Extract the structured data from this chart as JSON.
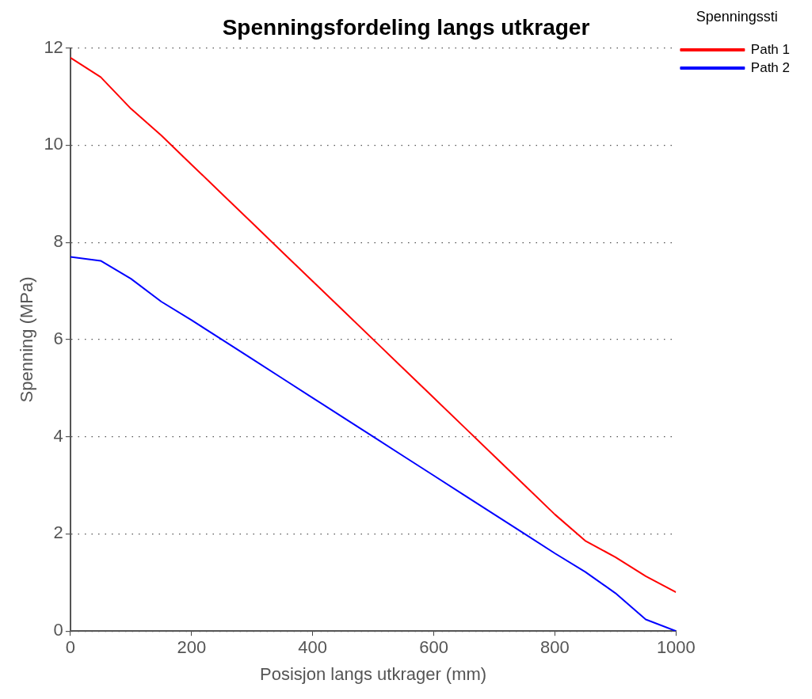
{
  "chart_data": {
    "type": "line",
    "title": "Spenningsfordeling langs utkrager",
    "xlabel": "Posisjon langs utkrager (mm)",
    "ylabel": "Spenning (MPa)",
    "legend_title": "Spenningssti",
    "x": [
      0,
      50,
      100,
      150,
      200,
      250,
      300,
      350,
      400,
      450,
      500,
      550,
      600,
      650,
      700,
      750,
      800,
      850,
      900,
      950,
      1000
    ],
    "series": [
      {
        "name": "Path 1",
        "color": "#ff0000",
        "values": [
          11.8,
          11.4,
          10.75,
          10.2,
          9.6,
          9.0,
          8.4,
          7.8,
          7.2,
          6.6,
          6.0,
          5.4,
          4.8,
          4.2,
          3.6,
          3.0,
          2.4,
          1.86,
          1.52,
          1.13,
          0.8
        ]
      },
      {
        "name": "Path 2",
        "color": "#0000ff",
        "values": [
          7.7,
          7.62,
          7.25,
          6.78,
          6.4,
          6.0,
          5.6,
          5.2,
          4.8,
          4.4,
          4.0,
          3.6,
          3.2,
          2.8,
          2.4,
          2.0,
          1.6,
          1.22,
          0.78,
          0.24,
          0
        ]
      }
    ],
    "xlim": [
      0,
      1000
    ],
    "xticks": [
      0,
      200,
      400,
      600,
      800,
      1000
    ],
    "ylim": [
      0,
      12
    ],
    "yticks": [
      0,
      2,
      4,
      6,
      8,
      10,
      12
    ],
    "grid": "y",
    "legend": "right",
    "marker": "none",
    "line_style": "solid"
  }
}
